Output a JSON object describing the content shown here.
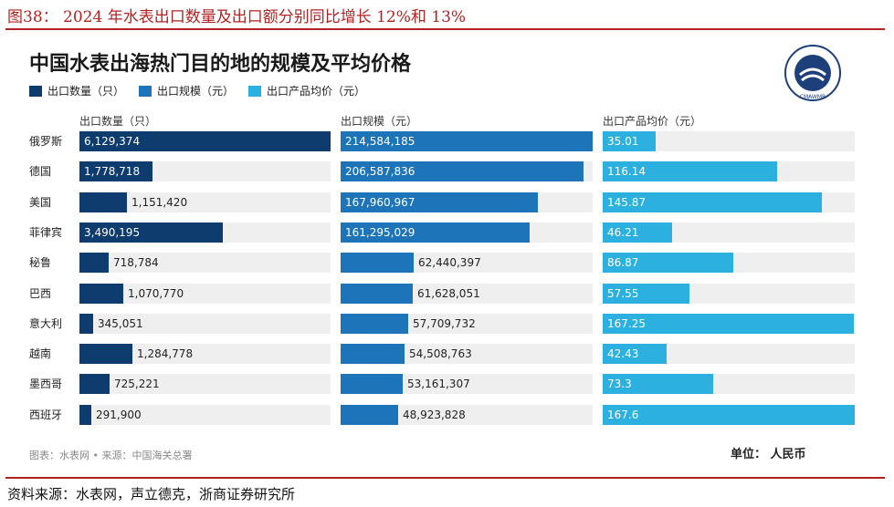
{
  "caption": "图38：  2024 年水表出口数量及出口额分别同比增长 12%和 13%",
  "source": "资料来源：水表网，声立德克，浙商证券研究所",
  "logo_text": "CMAWMR",
  "colors": {
    "series1": "#0f3c6e",
    "series2": "#1d74b8",
    "series3": "#2bb0e0",
    "track": "#efefef",
    "accent": "#b22222"
  },
  "chart_data": {
    "type": "bar",
    "title": "中国水表出海热门目的地的规模及平均价格",
    "categories": [
      "俄罗斯",
      "德国",
      "美国",
      "菲律宾",
      "秘鲁",
      "巴西",
      "意大利",
      "越南",
      "墨西哥",
      "西班牙"
    ],
    "series": [
      {
        "name": "出口数量（只）",
        "header": "出口数量（只）",
        "values": [
          6129374,
          1778718,
          1151420,
          3490195,
          718784,
          1070770,
          345051,
          1284778,
          725221,
          291900
        ],
        "labels": [
          "6,129,374",
          "1,778,718",
          "1,151,420",
          "3,490,195",
          "718,784",
          "1,070,770",
          "345,051",
          "1,284,778",
          "725,221",
          "291,900"
        ],
        "max": 6129374
      },
      {
        "name": "出口规模（元）",
        "header": "出口规模（元）",
        "values": [
          214584185,
          206587836,
          167960967,
          161295029,
          62440397,
          61628051,
          57709732,
          54508763,
          53161307,
          48923828
        ],
        "labels": [
          "214,584,185",
          "206,587,836",
          "167,960,967",
          "161,295,029",
          "62,440,397",
          "61,628,051",
          "57,709,732",
          "54,508,763",
          "53,161,307",
          "48,923,828"
        ],
        "max": 214584185
      },
      {
        "name": "出口产品均价（元）",
        "header": "出口产品均价（元）",
        "values": [
          35.01,
          116.14,
          145.87,
          46.21,
          86.87,
          57.55,
          167.25,
          42.43,
          73.3,
          167.6
        ],
        "labels": [
          "35.01",
          "116.14",
          "145.87",
          "46.21",
          "86.87",
          "57.55",
          "167.25",
          "42.43",
          "73.3",
          "167.6"
        ],
        "max": 167.6
      }
    ],
    "footer_source": "图表：水表网 • 来源：中国海关总署",
    "unit": "单位：  人民币"
  }
}
